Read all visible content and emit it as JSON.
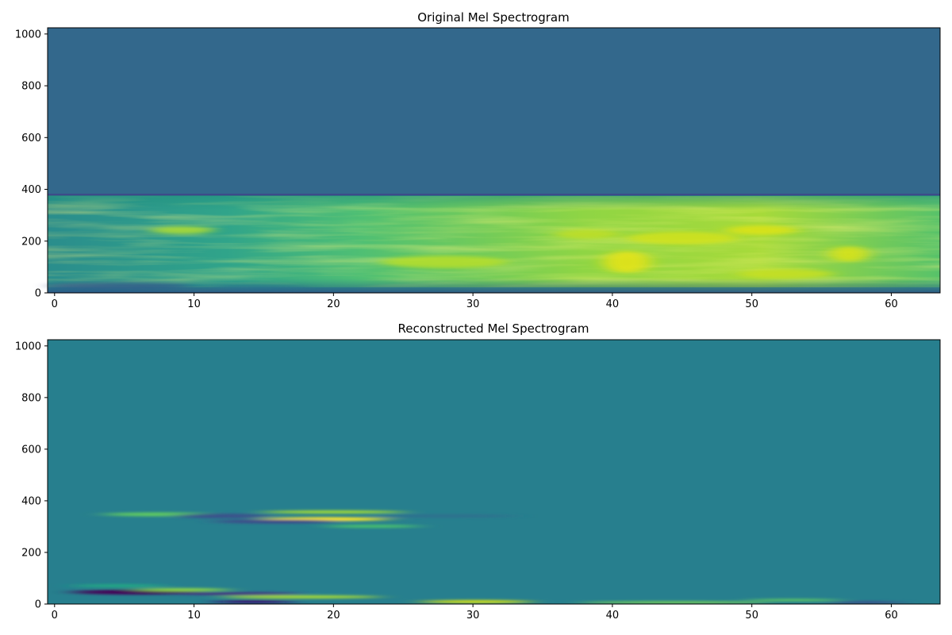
{
  "chart_data": [
    {
      "type": "heatmap",
      "title": "Original Mel Spectrogram",
      "xlabel": "",
      "ylabel": "",
      "xlim": [
        -0.5,
        63.5
      ],
      "ylim": [
        0,
        1024
      ],
      "xticks": [
        0,
        10,
        20,
        30,
        40,
        50,
        60
      ],
      "yticks": [
        0,
        200,
        400,
        600,
        800,
        1000
      ],
      "colormap": "viridis",
      "grid": false,
      "regions": [
        {
          "y_range": [
            375,
            1024
          ],
          "description_level": 0.3,
          "color": "#33688c"
        },
        {
          "y_range": [
            0,
            375
          ],
          "level_range": [
            0.45,
            0.95
          ],
          "color_range": [
            "#26a08a",
            "#e0e030"
          ]
        }
      ]
    },
    {
      "type": "heatmap",
      "title": "Reconstructed Mel Spectrogram",
      "xlabel": "",
      "ylabel": "",
      "xlim": [
        -0.5,
        63.5
      ],
      "ylim": [
        0,
        1024
      ],
      "xticks": [
        0,
        10,
        20,
        30,
        40,
        50,
        60
      ],
      "yticks": [
        0,
        200,
        400,
        600,
        800,
        1000
      ],
      "colormap": "viridis",
      "grid": false,
      "background_color": "#277f8e",
      "features": [
        {
          "x_range": [
            5,
            30
          ],
          "y_center": 345,
          "kind": "yellow-streak"
        },
        {
          "x_range": [
            15,
            27
          ],
          "y_center": 325,
          "kind": "yellow-streak"
        },
        {
          "x_range": [
            2,
            15
          ],
          "y_center": 45,
          "kind": "dark-streak"
        },
        {
          "x_range": [
            8,
            25
          ],
          "y_center": 25,
          "kind": "yellow-streak"
        },
        {
          "x_range": [
            28,
            40
          ],
          "y_center": 10,
          "kind": "yellow-streak"
        },
        {
          "x_range": [
            55,
            62
          ],
          "y_center": 12,
          "kind": "dark-streak"
        }
      ]
    }
  ]
}
